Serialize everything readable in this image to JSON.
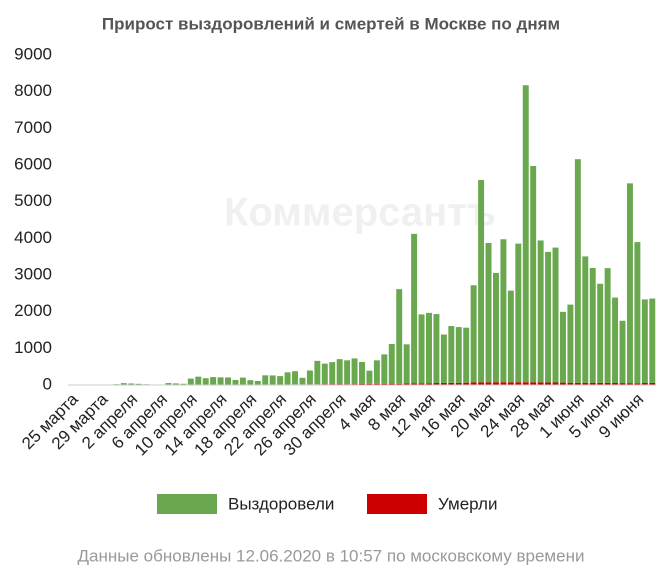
{
  "chart_data": {
    "type": "bar",
    "stacked": true,
    "title": "Прирост выздоровлений и смертей в Москве по дням",
    "watermark": "Коммерсантъ",
    "footnote": "Данные обновлены 12.06.2020 в 10:57 по московскому времени",
    "categories": [
      "25 марта",
      null,
      null,
      null,
      "29 марта",
      null,
      null,
      null,
      "2 апреля",
      null,
      null,
      null,
      "6 апреля",
      null,
      null,
      null,
      "10 апреля",
      null,
      null,
      null,
      "14 апреля",
      null,
      null,
      null,
      "18 апреля",
      null,
      null,
      null,
      "22 апреля",
      null,
      null,
      null,
      "26 апреля",
      null,
      null,
      null,
      "30 апреля",
      null,
      null,
      null,
      "4 мая",
      null,
      null,
      null,
      "8 мая",
      null,
      null,
      null,
      "12 мая",
      null,
      null,
      null,
      "16 мая",
      null,
      null,
      null,
      "20 мая",
      null,
      null,
      null,
      "24 мая",
      null,
      null,
      null,
      "28 мая",
      null,
      null,
      null,
      "1 июня",
      null,
      null,
      null,
      "5 июня",
      null,
      null,
      null,
      "9 июня",
      null,
      null
    ],
    "series": [
      {
        "name": "Выздоровели",
        "color": "#6aa84f",
        "values": [
          5,
          5,
          5,
          10,
          10,
          10,
          20,
          50,
          40,
          30,
          20,
          10,
          10,
          50,
          40,
          30,
          170,
          220,
          180,
          210,
          200,
          200,
          130,
          190,
          120,
          100,
          250,
          250,
          230,
          330,
          360,
          180,
          380,
          640,
          560,
          600,
          680,
          650,
          700,
          600,
          360,
          640,
          800,
          1080,
          2580,
          1070,
          4080,
          1880,
          1920,
          1880,
          1320,
          1550,
          1520,
          1500,
          2650,
          5520,
          3800,
          2980,
          3900,
          2500,
          3780,
          8100,
          5900,
          3870,
          3560,
          3680,
          1930,
          2130,
          6100,
          3450,
          3130,
          2700,
          3130,
          2330,
          1700,
          5450,
          3850,
          2280,
          2300
        ]
      },
      {
        "name": "Умерли",
        "color": "#cc0000",
        "values": [
          0,
          1,
          1,
          1,
          1,
          2,
          2,
          1,
          2,
          2,
          1,
          3,
          4,
          3,
          3,
          4,
          5,
          7,
          5,
          6,
          8,
          7,
          8,
          12,
          11,
          9,
          14,
          11,
          13,
          15,
          16,
          17,
          15,
          18,
          23,
          24,
          25,
          23,
          25,
          28,
          30,
          33,
          35,
          37,
          35,
          40,
          42,
          46,
          47,
          54,
          57,
          58,
          60,
          63,
          70,
          72,
          74,
          76,
          75,
          73,
          76,
          75,
          73,
          72,
          70,
          68,
          65,
          62,
          58,
          57,
          62,
          60,
          58,
          55,
          52,
          50,
          48,
          55,
          58
        ]
      }
    ],
    "ylim": [
      0,
      9000
    ],
    "yticks": [
      0,
      1000,
      2000,
      3000,
      4000,
      5000,
      6000,
      7000,
      8000,
      9000
    ],
    "grid": false,
    "legend": "bottom"
  }
}
